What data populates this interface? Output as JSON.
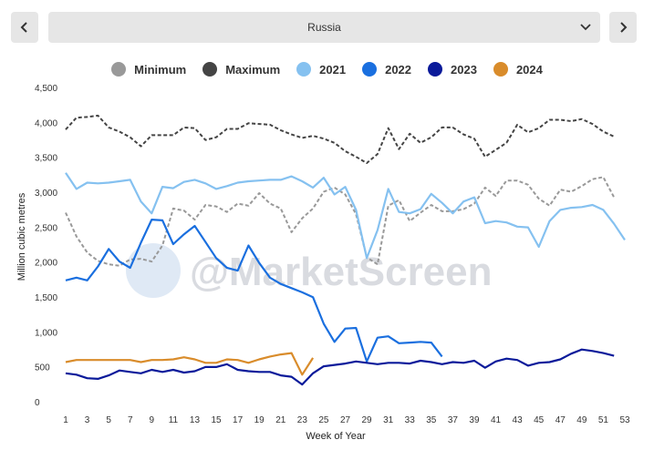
{
  "nav": {
    "prev_icon": "chevron-left-icon",
    "next_icon": "chevron-right-icon",
    "region_selected": "Russia",
    "dropdown_icon": "chevron-down-icon"
  },
  "watermark": "@MarketScreen",
  "chart_data": {
    "type": "line",
    "xlabel": "Week of Year",
    "ylabel": "Million cubic metres",
    "x_ticks": [
      1,
      3,
      5,
      7,
      9,
      11,
      13,
      15,
      17,
      19,
      21,
      23,
      25,
      27,
      29,
      31,
      33,
      35,
      37,
      39,
      41,
      43,
      45,
      47,
      49,
      51,
      53
    ],
    "y_ticks": [
      0,
      500,
      1000,
      1500,
      2000,
      2500,
      3000,
      3500,
      4000,
      4500
    ],
    "y_tick_labels": [
      "0",
      "500",
      "1,000",
      "1,500",
      "2,000",
      "2,500",
      "3,000",
      "3,500",
      "4,000",
      "4,500"
    ],
    "ylim": [
      0,
      4500
    ],
    "xlim": [
      1,
      53
    ],
    "legend": [
      {
        "name": "Minimum",
        "color": "#999999"
      },
      {
        "name": "Maximum",
        "color": "#444444"
      },
      {
        "name": "2021",
        "color": "#85c1f0"
      },
      {
        "name": "2022",
        "color": "#1a6fdf"
      },
      {
        "name": "2023",
        "color": "#0a1a9a"
      },
      {
        "name": "2024",
        "color": "#d98c2b"
      }
    ],
    "series": [
      {
        "name": "Minimum",
        "color": "#999999",
        "dashed": true,
        "values": [
          2720,
          2380,
          2150,
          2030,
          1980,
          1960,
          2050,
          2060,
          2020,
          2250,
          2780,
          2750,
          2620,
          2830,
          2810,
          2730,
          2850,
          2820,
          3000,
          2850,
          2780,
          2440,
          2640,
          2780,
          3020,
          3080,
          2980,
          2700,
          2080,
          1980,
          2820,
          2900,
          2600,
          2720,
          2830,
          2740,
          2740,
          2770,
          2850,
          3080,
          2960,
          3180,
          3180,
          3120,
          2920,
          2820,
          3050,
          3020,
          3100,
          3200,
          3230,
          2940
        ]
      },
      {
        "name": "Maximum",
        "color": "#444444",
        "dashed": true,
        "values": [
          3910,
          4080,
          4090,
          4110,
          3940,
          3880,
          3800,
          3670,
          3830,
          3830,
          3830,
          3940,
          3930,
          3760,
          3800,
          3920,
          3920,
          4000,
          3990,
          3980,
          3900,
          3840,
          3790,
          3820,
          3780,
          3720,
          3600,
          3520,
          3430,
          3560,
          3930,
          3630,
          3850,
          3720,
          3800,
          3940,
          3940,
          3840,
          3780,
          3520,
          3620,
          3720,
          3980,
          3870,
          3930,
          4050,
          4050,
          4030,
          4060,
          3990,
          3880,
          3810
        ]
      },
      {
        "name": "2021",
        "color": "#85c1f0",
        "values": [
          3290,
          3060,
          3150,
          3140,
          3150,
          3170,
          3190,
          2880,
          2710,
          3090,
          3070,
          3160,
          3190,
          3140,
          3060,
          3100,
          3150,
          3170,
          3180,
          3190,
          3190,
          3240,
          3170,
          3080,
          3220,
          2980,
          3090,
          2760,
          2070,
          2470,
          3060,
          2730,
          2710,
          2770,
          2990,
          2860,
          2710,
          2880,
          2940,
          2570,
          2600,
          2580,
          2520,
          2510,
          2230,
          2600,
          2760,
          2790,
          2800,
          2830,
          2760,
          2560,
          2330
        ]
      },
      {
        "name": "2022",
        "color": "#1a6fdf",
        "values": [
          1750,
          1790,
          1750,
          1950,
          2200,
          2020,
          1930,
          2290,
          2620,
          2610,
          2270,
          2410,
          2530,
          2300,
          2070,
          1930,
          1890,
          2250,
          2000,
          1790,
          1700,
          1640,
          1580,
          1510,
          1130,
          870,
          1060,
          1070,
          590,
          930,
          950,
          850,
          860,
          870,
          860,
          660
        ]
      },
      {
        "name": "2023",
        "color": "#0a1a9a",
        "values": [
          420,
          400,
          350,
          340,
          390,
          460,
          440,
          420,
          470,
          440,
          470,
          430,
          450,
          510,
          510,
          550,
          470,
          450,
          440,
          440,
          390,
          370,
          260,
          420,
          520,
          540,
          560,
          590,
          570,
          550,
          570,
          570,
          560,
          600,
          580,
          550,
          580,
          570,
          600,
          500,
          590,
          630,
          610,
          530,
          570,
          580,
          620,
          700,
          760,
          740,
          710,
          670
        ]
      },
      {
        "name": "2024",
        "color": "#d98c2b",
        "values": [
          580,
          610,
          610,
          610,
          610,
          610,
          610,
          580,
          610,
          610,
          620,
          650,
          620,
          570,
          570,
          620,
          610,
          570,
          620,
          660,
          690,
          710,
          400,
          640
        ]
      }
    ]
  }
}
